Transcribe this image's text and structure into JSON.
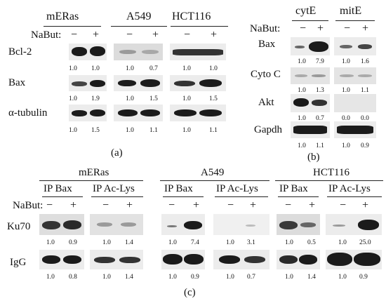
{
  "a": {
    "cells": [
      "mERas",
      "A549",
      "HCT116"
    ],
    "treatment": "NaBut:",
    "signs": [
      "−",
      "+"
    ],
    "rows": [
      {
        "label": "Bcl-2",
        "values": [
          "1.0",
          "1.0",
          "1.0",
          "0.7",
          "1.0",
          "1.0"
        ]
      },
      {
        "label": "Bax",
        "values": [
          "1.0",
          "1.9",
          "1.0",
          "1.5",
          "1.0",
          "1.5"
        ]
      },
      {
        "label": "α-tubulin",
        "values": [
          "1.0",
          "1.5",
          "1.0",
          "1.1",
          "1.0",
          "1.1"
        ]
      }
    ],
    "panel_label": "(a)"
  },
  "b": {
    "fractions": [
      "cytE",
      "mitE"
    ],
    "treatment": "NaBut:",
    "signs": [
      "−",
      "+"
    ],
    "rows": [
      {
        "label": "Bax",
        "values": [
          "1.0",
          "7.9",
          "1.0",
          "1.6"
        ]
      },
      {
        "label": "Cyto C",
        "values": [
          "1.0",
          "1.3",
          "1.0",
          "1.1"
        ]
      },
      {
        "label": "Akt",
        "values": [
          "1.0",
          "0.7",
          "0.0",
          "0.0"
        ]
      },
      {
        "label": "Gapdh",
        "values": [
          "1.0",
          "1.1",
          "1.0",
          "0.9"
        ]
      }
    ],
    "panel_label": "(b)"
  },
  "c": {
    "cells": [
      "mERas",
      "A549",
      "HCT116"
    ],
    "ips": [
      "IP Bax",
      "IP Ac-Lys",
      "IP Bax",
      "IP Ac-Lys",
      "IP Bax",
      "IP Ac-Lys"
    ],
    "treatment": "NaBut:",
    "signs": [
      "−",
      "+"
    ],
    "rows": [
      {
        "label": "Ku70",
        "values": [
          "1.0",
          "0.9",
          "1.0",
          "1.4",
          "1.0",
          "7.4",
          "1.0",
          "3.1",
          "1.0",
          "0.5",
          "1.0",
          "25.0"
        ]
      },
      {
        "label": "IgG",
        "values": [
          "1.0",
          "0.8",
          "1.0",
          "1.4",
          "1.0",
          "0.9",
          "1.0",
          "0.7",
          "1.0",
          "1.4",
          "1.0",
          "0.9"
        ]
      }
    ],
    "panel_label": "(c)"
  }
}
